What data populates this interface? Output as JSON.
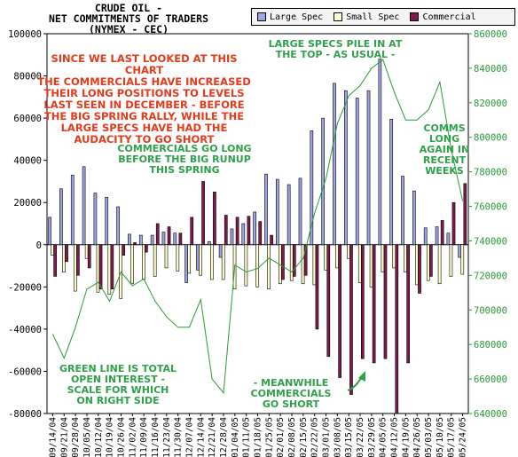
{
  "chart_data": {
    "type": "bar",
    "title_lines": [
      "CRUDE OIL -",
      "NET COMMITMENTS OF TRADERS",
      "(NYMEX - CEC)"
    ],
    "categories": [
      "09/14/04",
      "09/21/04",
      "09/28/04",
      "10/05/04",
      "10/12/04",
      "10/19/04",
      "10/26/04",
      "11/02/04",
      "11/09/04",
      "11/16/04",
      "11/23/04",
      "11/30/04",
      "12/07/04",
      "12/14/04",
      "12/21/04",
      "12/28/04",
      "01/04/05",
      "01/11/05",
      "01/18/05",
      "01/25/05",
      "02/01/05",
      "02/08/05",
      "02/15/05",
      "02/22/05",
      "03/01/05",
      "03/08/05",
      "03/15/05",
      "03/22/05",
      "03/29/05",
      "04/05/05",
      "04/12/05",
      "04/19/05",
      "04/26/05",
      "05/03/05",
      "05/10/05",
      "05/17/05",
      "05/24/05"
    ],
    "x_tick_labels": [
      "09/14/04",
      "09/21/04",
      "09/28/04",
      "10/05/04",
      "10/12/04",
      "10/19/04",
      "10/26/04",
      "11/02/04",
      "11/09/04",
      "11/16/04",
      "11/23/04",
      "11/30/04",
      "12/07/04",
      "12/14/04",
      "12/21/04",
      "12/28/04",
      "01/04/05",
      "01/11/05",
      "01/18/05",
      "01/25/05",
      "02/01/05",
      "02/08/05",
      "02/15/05",
      "02/22/05",
      "03/01/05",
      "03/08/05",
      "03/15/05",
      "03/22/05",
      "03/29/05",
      "04/05/05",
      "04/12/05",
      "04/19/05",
      "04/26/05",
      "05/03/05",
      "05/10/05",
      "05/17/05",
      "05/24/05"
    ],
    "y_left_ticks": [
      "100000",
      "80000",
      "60000",
      "40000",
      "20000",
      "0",
      "-20000",
      "-40000",
      "-60000",
      "-80000"
    ],
    "y_right_ticks": [
      "860000",
      "840000",
      "820000",
      "800000",
      "780000",
      "760000",
      "740000",
      "720000",
      "700000",
      "680000",
      "660000",
      "640000"
    ],
    "ylim_left": [
      -80000,
      100000
    ],
    "ylim_right": [
      640000,
      860000
    ],
    "series": [
      {
        "name": "Large Spec",
        "color": "#9fa4e6",
        "values": [
          13000,
          26500,
          33000,
          37000,
          24500,
          22500,
          18000,
          5000,
          4500,
          4500,
          6000,
          5500,
          -18000,
          -12000,
          1500,
          -6000,
          7500,
          10000,
          15500,
          33500,
          31000,
          28500,
          31500,
          54000,
          60000,
          76500,
          73000,
          69500,
          73000,
          88000,
          59500,
          32500,
          25500,
          8000,
          8500,
          5500,
          -6000
        ]
      },
      {
        "name": "Small Spec",
        "color": "#ffffcc",
        "values": [
          -5000,
          -13000,
          -22000,
          -6500,
          -22500,
          -23500,
          -25500,
          -18500,
          -16500,
          -15000,
          -11000,
          -12500,
          -13500,
          -14500,
          -16500,
          -16500,
          -21000,
          -19500,
          -20000,
          -21000,
          -18500,
          -17000,
          -18500,
          -19000,
          -12000,
          -11000,
          -6500,
          -18000,
          -20000,
          -13000,
          -11000,
          -13000,
          -19000,
          -17000,
          -18500,
          -15000,
          -14000
        ]
      },
      {
        "name": "Commercial",
        "color": "#7f1a4f",
        "values": [
          -15000,
          -8000,
          -14500,
          -11000,
          -21000,
          -21000,
          -5000,
          1000,
          -3500,
          10000,
          8500,
          5500,
          13000,
          30000,
          25000,
          14000,
          13000,
          13500,
          11000,
          4500,
          -16500,
          -15000,
          -14500,
          -40000,
          -53000,
          -63000,
          -71000,
          -54000,
          -56000,
          -54000,
          -80000,
          -56000,
          -23000,
          -15000,
          11500,
          20000,
          29000
        ]
      },
      {
        "name": "Open Interest",
        "color": "#2a9a35",
        "axis": "right",
        "values": [
          686000,
          672000,
          690000,
          712000,
          716000,
          705000,
          722000,
          714000,
          718000,
          705000,
          696000,
          690000,
          690000,
          706000,
          660000,
          652000,
          726000,
          722000,
          724000,
          730000,
          726000,
          722000,
          730000,
          756000,
          776000,
          808000,
          824000,
          830000,
          840000,
          845000,
          826000,
          810000,
          810000,
          816000,
          832000,
          793000,
          763000
        ]
      }
    ],
    "annotations": [
      {
        "text": "SINCE WE LAST LOOKED AT THIS CHART\nTHE COMMERCIALS HAVE INCREASED\nTHEIR LONG POSITIONS TO LEVELS\nLAST SEEN IN DECEMBER - BEFORE\nTHE BIG SPRING RALLY, WHILE THE\nLARGE SPECS HAVE HAD THE\nAUDACITY TO GO SHORT",
        "color": "#e23b1d"
      },
      {
        "text": "COMMERCIALS GO LONG\nBEFORE THE BIG RUNUP\nTHIS SPRING",
        "color": "#2ea14a"
      },
      {
        "text": "LARGE SPECS PILE IN AT\nTHE TOP - AS USUAL -",
        "color": "#2ea14a"
      },
      {
        "text": "COMMS\nLONG\nAGAIN IN\nRECENT\nWEEKS",
        "color": "#2ea14a"
      },
      {
        "text": "GREEN LINE IS TOTAL\nOPEN INTEREST -\nSCALE FOR WHICH\nON RIGHT SIDE",
        "color": "#2ea14a"
      },
      {
        "text": "- MEANWHILE\nCOMMERCIALS\nGO SHORT",
        "color": "#2ea14a"
      }
    ]
  }
}
